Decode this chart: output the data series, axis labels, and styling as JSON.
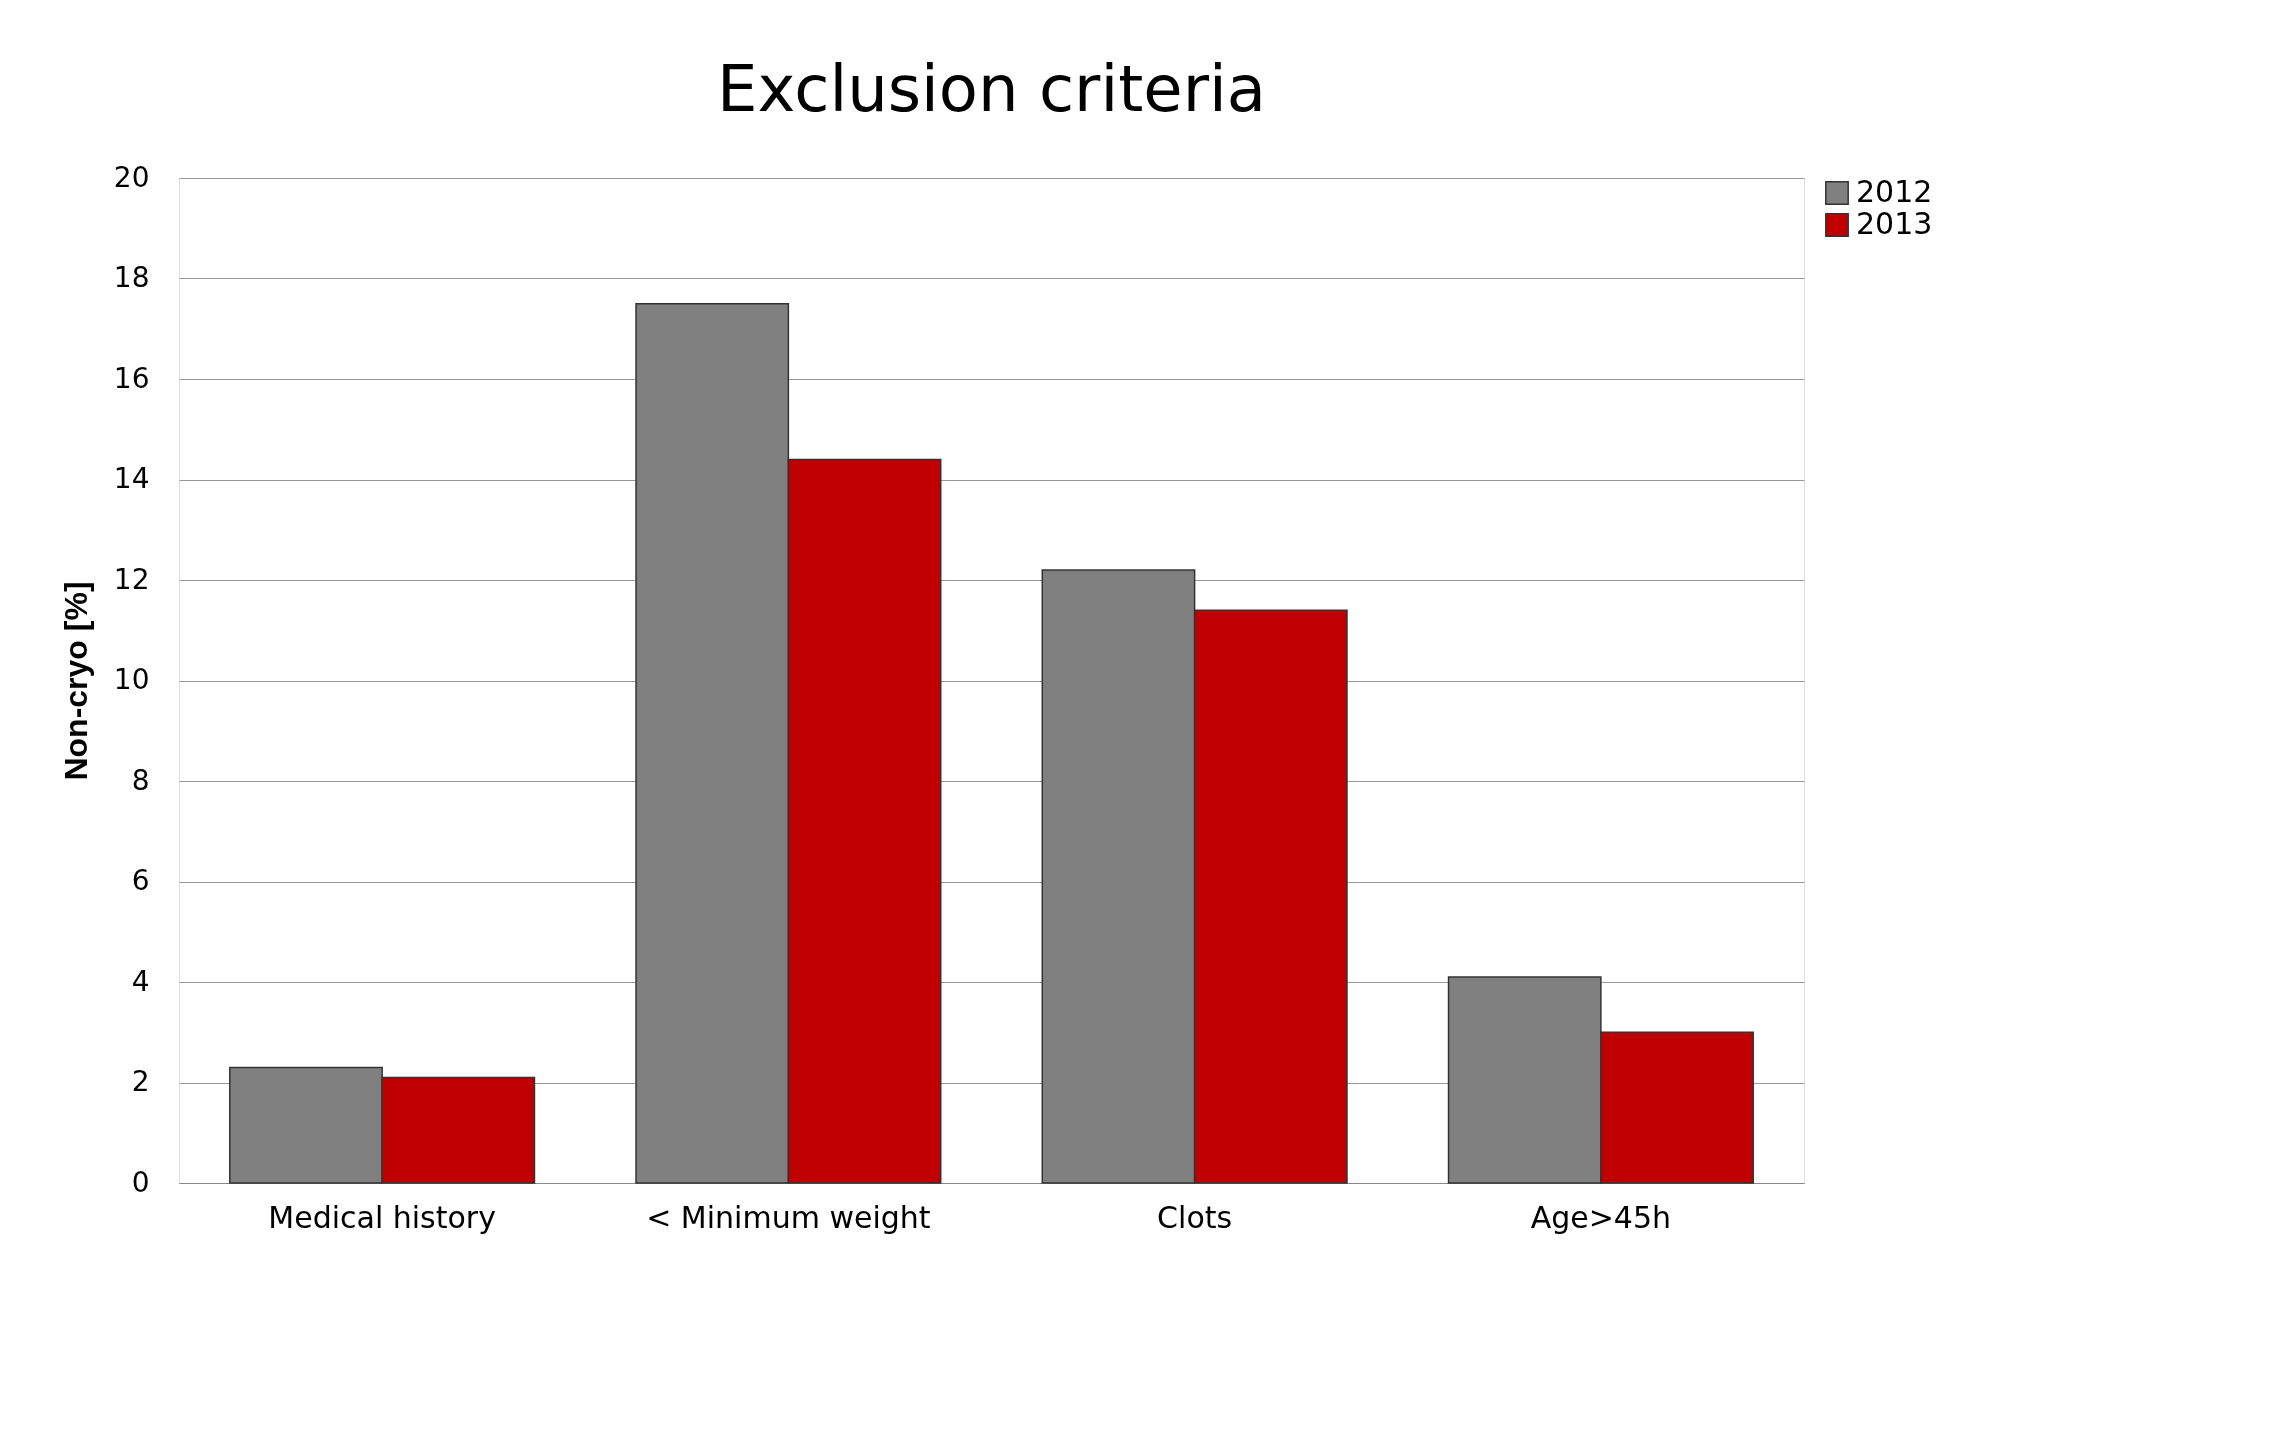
{
  "chart_data": {
    "type": "bar",
    "title": "Exclusion criteria",
    "ylabel": "Non-cryo [%]",
    "categories": [
      "Medical  history",
      "< Minimum weight",
      "Clots",
      "Age>45h"
    ],
    "series": [
      {
        "name": "2012",
        "color": "#808080",
        "values": [
          2.3,
          17.5,
          12.2,
          4.1
        ]
      },
      {
        "name": "2013",
        "color": "#c00000",
        "values": [
          2.1,
          14.4,
          11.4,
          3.0
        ]
      }
    ],
    "ylim": [
      0,
      20
    ],
    "yticks": [
      0,
      2,
      4,
      6,
      8,
      10,
      12,
      14,
      16,
      18,
      20
    ],
    "grid": "y",
    "legend": "right"
  }
}
